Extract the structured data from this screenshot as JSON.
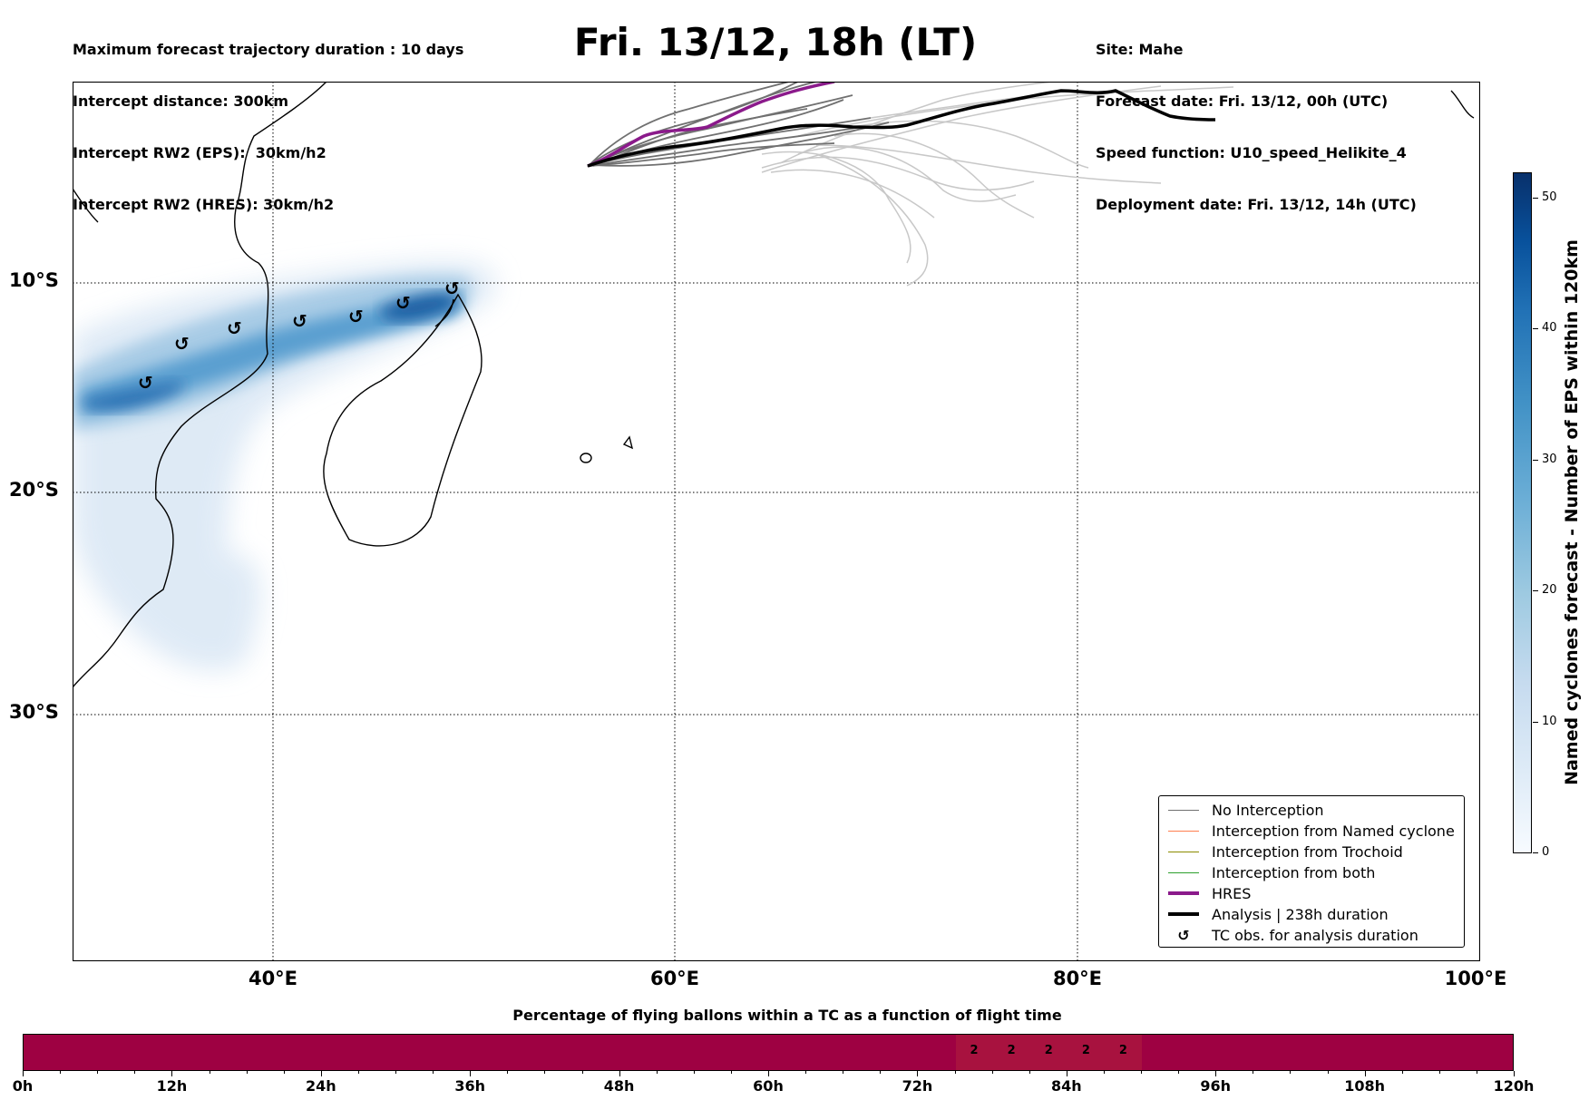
{
  "header": {
    "left": [
      "Maximum forecast trajectory duration : 10 days",
      "Intercept distance: 300km",
      "Intercept RW2 (EPS):  30km/h2",
      "Intercept RW2 (HRES): 30km/h2"
    ],
    "title": "Fri. 13/12, 18h (LT)",
    "right": [
      "Site: Mahe",
      "Forecast date: Fri. 13/12, 00h (UTC)",
      "Speed function: U10_speed_Helikite_4",
      "Deployment date: Fri. 13/12, 14h (UTC)"
    ]
  },
  "map": {
    "lat_labels": [
      "10°S",
      "20°S",
      "30°S"
    ],
    "lon_labels": [
      "40°E",
      "60°E",
      "80°E",
      "100°E"
    ],
    "tc_symbol": "↺",
    "colors": {
      "no_interception": "#707070",
      "named_cyclone": "#ff7f50",
      "trochoid": "#8b8b00",
      "both": "#2ca02c",
      "hres": "#8b1a8b",
      "analysis": "#000000",
      "density": "#2171b5"
    }
  },
  "legend": {
    "items": [
      {
        "label": "No Interception",
        "color": "#707070",
        "kind": "line"
      },
      {
        "label": "Interception from Named cyclone",
        "color": "#ff7f50",
        "kind": "line"
      },
      {
        "label": "Interception from Trochoid",
        "color": "#8b8b00",
        "kind": "line"
      },
      {
        "label": "Interception from both",
        "color": "#2ca02c",
        "kind": "line"
      },
      {
        "label": "HRES",
        "color": "#8b1a8b",
        "kind": "thick"
      },
      {
        "label": "Analysis | 238h duration",
        "color": "#000000",
        "kind": "thick"
      },
      {
        "label": "TC obs. for analysis duration",
        "color": "#000000",
        "kind": "symbol",
        "symbol": "↺"
      }
    ]
  },
  "colorbar": {
    "label": "Named cyclones forecast - Number of EPS within 120km",
    "ticks": [
      "0",
      "10",
      "20",
      "30",
      "40",
      "50"
    ],
    "max": 52
  },
  "percentage_bar": {
    "title": "Percentage of flying ballons within a TC as a function of flight time",
    "tick_labels": [
      "0h",
      "12h",
      "24h",
      "36h",
      "48h",
      "60h",
      "72h",
      "84h",
      "96h",
      "108h",
      "120h"
    ],
    "hours_max": 120,
    "segment": {
      "start_h": 75,
      "end_h": 90
    },
    "values": [
      {
        "hour": 76.5,
        "label": "2"
      },
      {
        "hour": 79.5,
        "label": "2"
      },
      {
        "hour": 82.5,
        "label": "2"
      },
      {
        "hour": 85.5,
        "label": "2"
      },
      {
        "hour": 88.5,
        "label": "2"
      }
    ]
  }
}
